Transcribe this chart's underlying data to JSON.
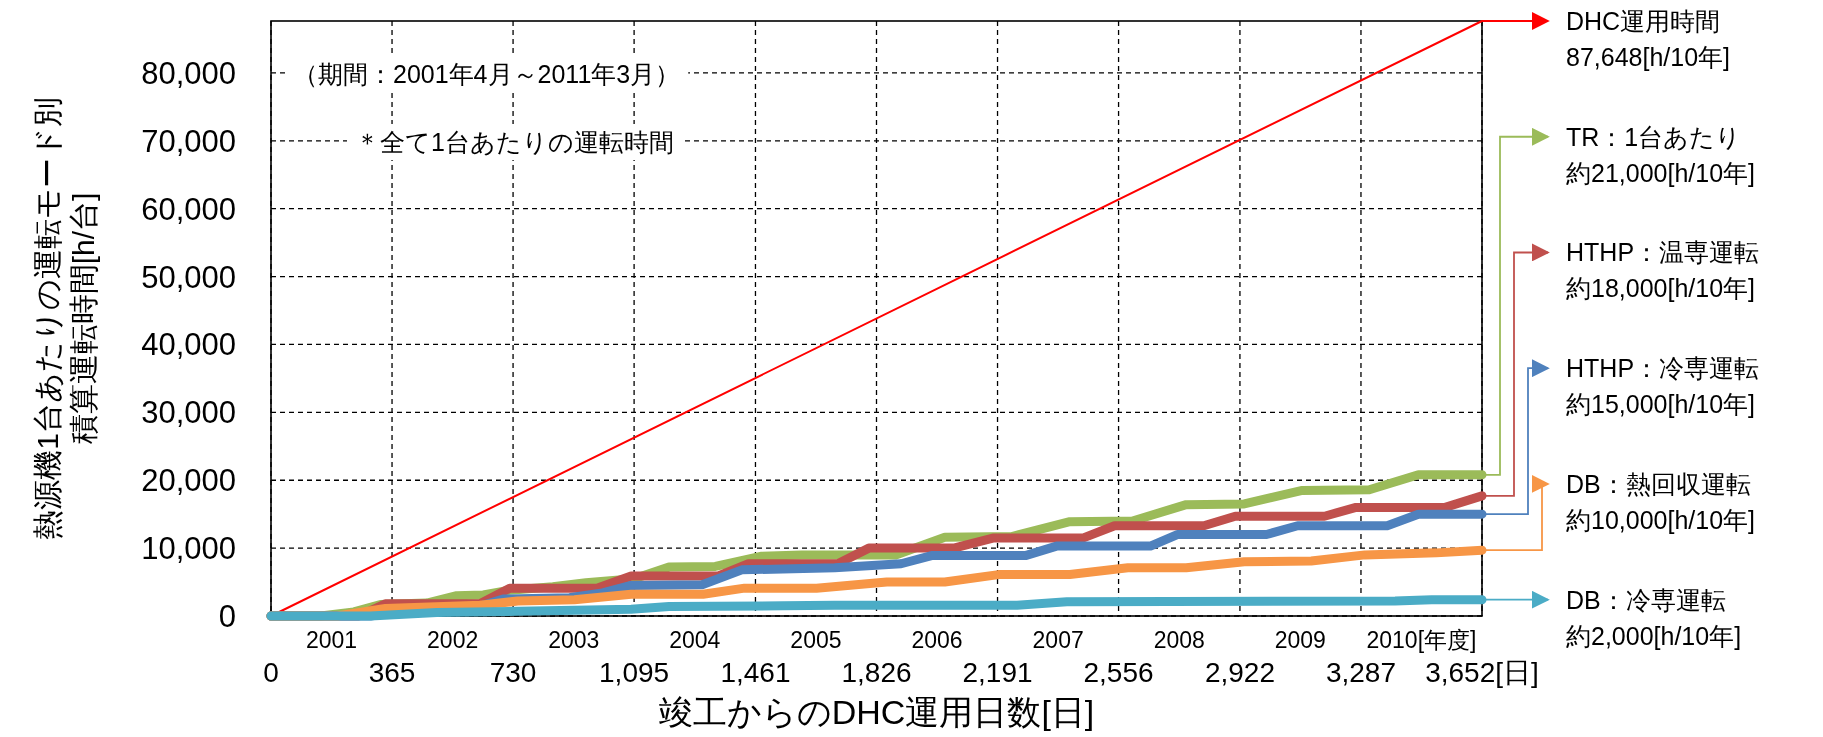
{
  "chart_data": {
    "type": "line",
    "xlabel": "竣工からのDHC運用日数[日]",
    "ylabel": "熱源機1台あたりの運転モード別積算運転時間[h/台]",
    "annotations": [
      "（期間：2001年4月～2011年3月）",
      "＊全て1台あたりの運転時間",
      "87,648[h/10年]",
      "約21,000[h/10年]",
      "約18,000[h/10年]",
      "約15,000[h/10年]",
      "約10,000[h/10年]",
      "約2,000[h/10年]"
    ],
    "legend": "right",
    "xlim": [
      0,
      3652
    ],
    "xticks": [
      0,
      {
        "value": 365,
        "label": "365"
      },
      {
        "value": 730,
        "label": "730"
      },
      {
        "value": 1095,
        "label": "1,095"
      },
      {
        "value": 1461,
        "label": "1,461"
      },
      {
        "value": 1826,
        "label": "1,826"
      },
      {
        "value": 2191,
        "label": "2,191"
      },
      {
        "value": 2556,
        "label": "2,556"
      },
      {
        "value": 2922,
        "label": "2,922"
      },
      {
        "value": 3287,
        "label": "3,287"
      },
      {
        "value": 3652,
        "label": "3,652[日]"
      }
    ],
    "x2lim": [
      2000.5,
      2010.5
    ],
    "x2ticks": [
      2001,
      2002,
      2003,
      2004,
      2005,
      2006,
      2007,
      2008,
      2009,
      {
        "value": 2010,
        "label": "2010[年度]"
      }
    ],
    "ylim": [
      0,
      87648
    ],
    "yticks": [
      0,
      {
        "value": 10000,
        "label": "10,000"
      },
      {
        "value": 20000,
        "label": "20,000"
      },
      {
        "value": 30000,
        "label": "30,000"
      },
      {
        "value": 40000,
        "label": "40,000"
      },
      {
        "value": 50000,
        "label": "50,000"
      },
      {
        "value": 60000,
        "label": "60,000"
      },
      {
        "value": 70000,
        "label": "70,000"
      },
      {
        "value": 80000,
        "label": "80,000"
      }
    ],
    "grid": true,
    "series": [
      {
        "name": "DHC運用時間",
        "color": "#ff0000",
        "x": [
          0,
          3652
        ],
        "values": [
          0,
          87648
        ]
      },
      {
        "name": "TR：1台あたり",
        "color": "#9bbb59",
        "x": [
          0,
          150,
          250,
          330,
          470,
          560,
          640,
          720,
          850,
          950,
          1095,
          1200,
          1340,
          1480,
          1600,
          1884,
          2032,
          2234,
          2409,
          2598,
          2760,
          2935,
          3110,
          3312,
          3460,
          3652
        ],
        "values": [
          0,
          0,
          600,
          1700,
          1900,
          3000,
          3100,
          3800,
          4300,
          4900,
          5500,
          7200,
          7300,
          8800,
          9000,
          9000,
          11600,
          11700,
          13900,
          14000,
          16400,
          16500,
          18500,
          18600,
          20800,
          20800
        ]
      },
      {
        "name": "HTHP：温専運転",
        "color": "#c0504d",
        "x": [
          0,
          265,
          345,
          630,
          720,
          983,
          1086,
          1349,
          1440,
          1709,
          1803,
          2059,
          2180,
          2450,
          2544,
          2813,
          2908,
          3177,
          3272,
          3541,
          3652
        ],
        "values": [
          0,
          0,
          1800,
          1800,
          4100,
          4100,
          5900,
          5900,
          7700,
          7700,
          10000,
          10000,
          11500,
          11500,
          13300,
          13300,
          14700,
          14700,
          16000,
          16000,
          17700
        ]
      },
      {
        "name": "HTHP：冷専運転",
        "color": "#4f81bd",
        "x": [
          0,
          300,
          400,
          600,
          700,
          900,
          1000,
          1086,
          1300,
          1420,
          1700,
          1900,
          1992,
          2275,
          2369,
          2652,
          2733,
          3002,
          3096,
          3366,
          3460,
          3652
        ],
        "values": [
          0,
          0,
          800,
          1000,
          2500,
          2700,
          3400,
          4500,
          4600,
          6800,
          7100,
          7700,
          8900,
          8900,
          10300,
          10300,
          12000,
          12000,
          13300,
          13300,
          15000,
          15000
        ]
      },
      {
        "name": "DB：熱回収運転",
        "color": "#f79646",
        "x": [
          0,
          200,
          345,
          630,
          744,
          915,
          1086,
          1303,
          1428,
          1645,
          1857,
          2032,
          2194,
          2409,
          2584,
          2760,
          2935,
          3137,
          3299,
          3514,
          3652
        ],
        "values": [
          0,
          0,
          1100,
          1600,
          2200,
          2400,
          3200,
          3200,
          4100,
          4100,
          5000,
          5000,
          6100,
          6100,
          7100,
          7100,
          8000,
          8100,
          9000,
          9300,
          9700
        ]
      },
      {
        "name": "DB：冷専運転",
        "color": "#4bacc6",
        "x": [
          0,
          300,
          500,
          744,
          1086,
          1200,
          1543,
          1700,
          2250,
          2400,
          3390,
          3500,
          3652
        ],
        "values": [
          0,
          0,
          500,
          700,
          1000,
          1400,
          1500,
          1600,
          1600,
          2100,
          2200,
          2400,
          2400
        ]
      }
    ]
  }
}
